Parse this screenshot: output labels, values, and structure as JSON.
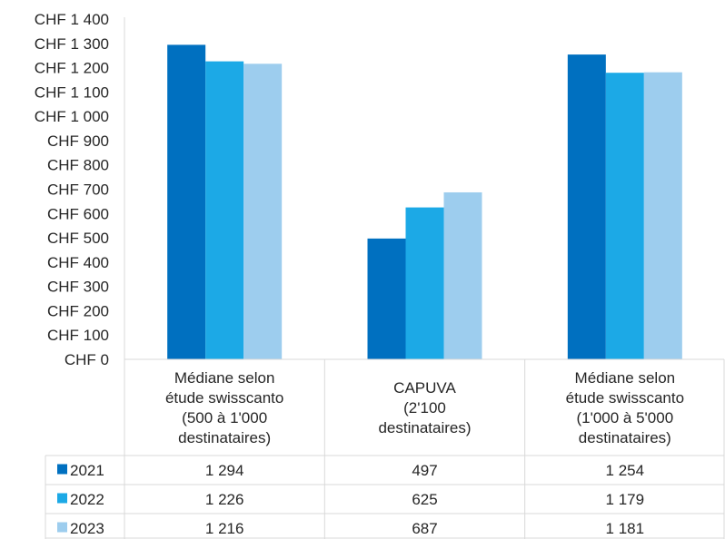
{
  "chart_data": {
    "type": "bar",
    "categories": [
      [
        "Médiane selon",
        "étude swisscanto",
        "(500 à 1'000",
        "destinataires)"
      ],
      [
        "CAPUVA",
        "(2'100",
        "destinataires)"
      ],
      [
        "Médiane selon",
        "étude swisscanto",
        "(1'000 à 5'000",
        "destinataires)"
      ]
    ],
    "series": [
      {
        "name": "2021",
        "values": [
          1294,
          497,
          1254
        ],
        "labels": [
          "1 294",
          "497",
          "1 254"
        ],
        "color": "#0070C0"
      },
      {
        "name": "2022",
        "values": [
          1226,
          625,
          1179
        ],
        "labels": [
          "1 226",
          "625",
          "1 179"
        ],
        "color": "#1CA9E6"
      },
      {
        "name": "2023",
        "values": [
          1216,
          687,
          1181
        ],
        "labels": [
          "1 216",
          "687",
          "1 181"
        ],
        "color": "#9DCDEE"
      }
    ],
    "ylim": [
      0,
      1400
    ],
    "yticks": [
      "CHF 0",
      "CHF 100",
      "CHF 200",
      "CHF 300",
      "CHF 400",
      "CHF 500",
      "CHF 600",
      "CHF 700",
      "CHF 800",
      "CHF 900",
      "CHF 1 000",
      "CHF 1 100",
      "CHF 1 200",
      "CHF 1 300",
      "CHF 1 400"
    ],
    "grid": false,
    "legend": "data-table"
  }
}
